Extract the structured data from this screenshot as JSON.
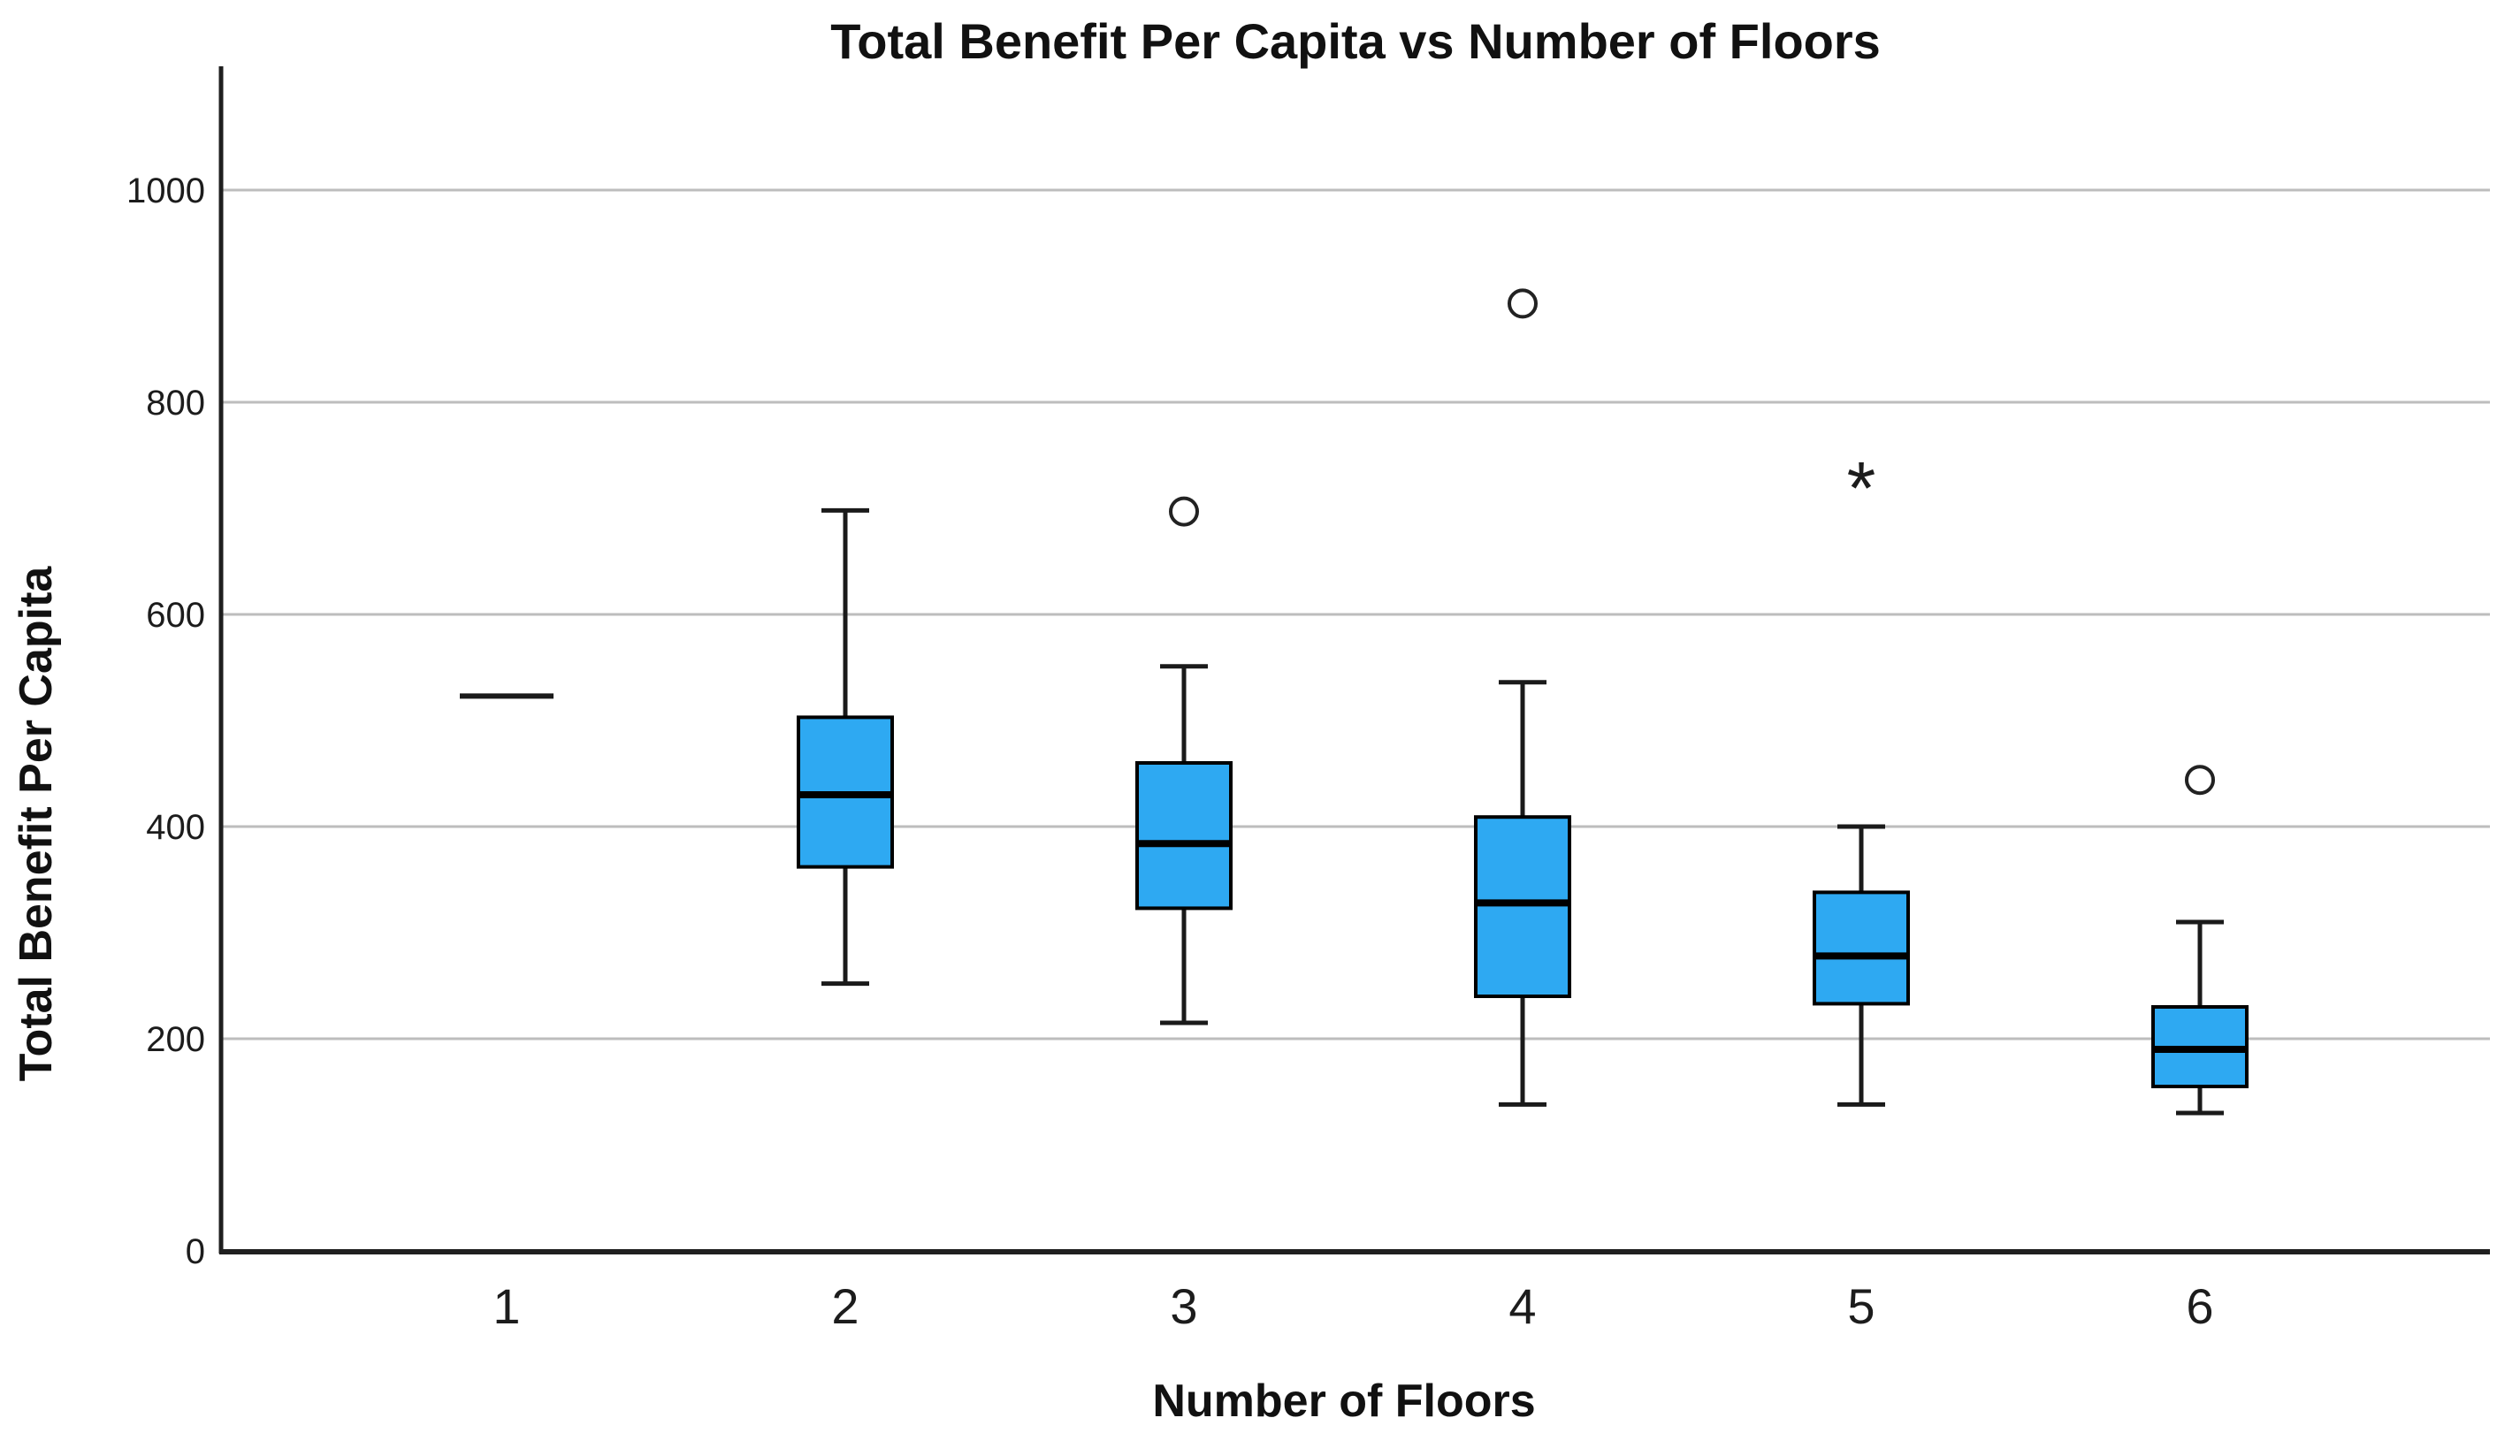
{
  "chart_data": {
    "type": "boxplot",
    "title": "Total Benefit Per Capita vs Number of Floors",
    "xlabel": "Number of Floors",
    "ylabel": "Total Benefit Per Capita",
    "categories": [
      "1",
      "2",
      "3",
      "4",
      "5",
      "6"
    ],
    "ylim": [
      0,
      1117
    ],
    "yticks": [
      0,
      200,
      400,
      600,
      800,
      1000
    ],
    "grid": true,
    "legend": null,
    "outlier_marker": "circle",
    "extreme_marker": "asterisk",
    "styles": {
      "box_fill": "#2EA9F2",
      "box_stroke": "#000000",
      "whisker_color": "#1a1a1a",
      "gridline_color": "#bdbdbd",
      "axis_color": "#1f1f1f",
      "text_color": "#1c1c1c",
      "background": "#ffffff"
    },
    "series": [
      {
        "category": "1",
        "median": 523,
        "whisker_low": null,
        "q1": null,
        "q3": null,
        "whisker_high": null,
        "outliers": [],
        "extremes": []
      },
      {
        "category": "2",
        "whisker_low": 252,
        "q1": 362,
        "median": 430,
        "q3": 503,
        "whisker_high": 698,
        "outliers": [],
        "extremes": []
      },
      {
        "category": "3",
        "whisker_low": 215,
        "q1": 323,
        "median": 384,
        "q3": 460,
        "whisker_high": 551,
        "outliers": [
          697
        ],
        "extremes": []
      },
      {
        "category": "4",
        "whisker_low": 138,
        "q1": 240,
        "median": 328,
        "q3": 409,
        "whisker_high": 536,
        "outliers": [
          893
        ],
        "extremes": []
      },
      {
        "category": "5",
        "whisker_low": 138,
        "q1": 233,
        "median": 278,
        "q3": 338,
        "whisker_high": 400,
        "outliers": [],
        "extremes": [
          730
        ]
      },
      {
        "category": "6",
        "whisker_low": 130,
        "q1": 155,
        "median": 190,
        "q3": 230,
        "whisker_high": 310,
        "outliers": [
          444
        ],
        "extremes": []
      }
    ]
  }
}
